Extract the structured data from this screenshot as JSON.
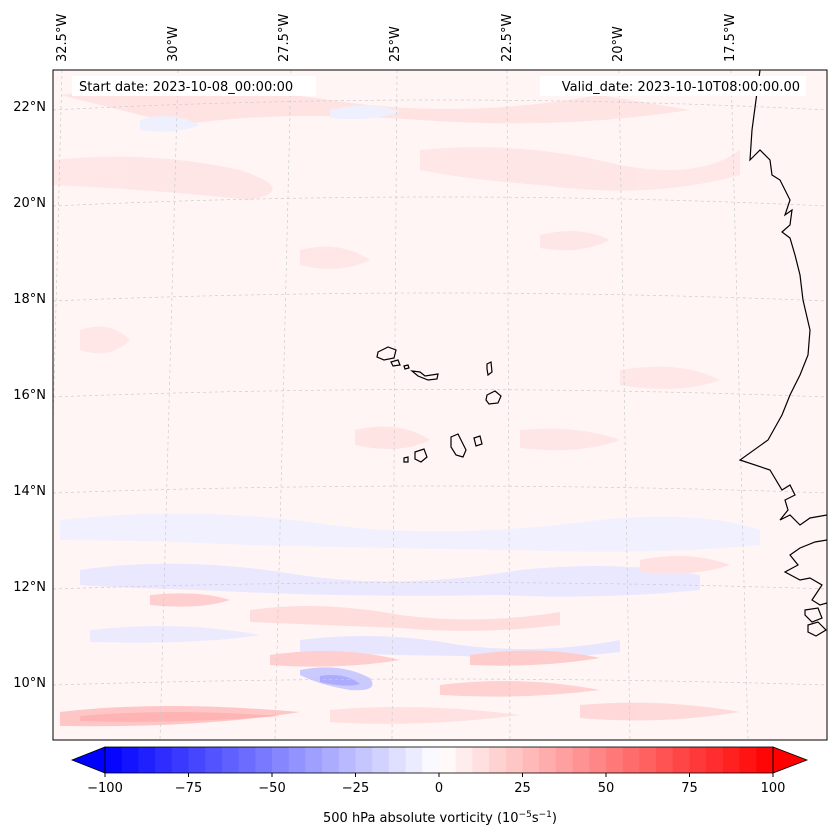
{
  "annotations": {
    "start_date": "Start date: 2023-10-08_00:00:00",
    "valid_date": "Valid_date: 2023-10-10T08:00:00.00"
  },
  "longitude_labels": [
    "32.5°W",
    "30°W",
    "27.5°W",
    "25°W",
    "22.5°W",
    "20°W",
    "17.5°W"
  ],
  "latitude_labels": [
    "22°N",
    "20°N",
    "18°N",
    "16°N",
    "14°N",
    "12°N",
    "10°N"
  ],
  "colorbar": {
    "label_main": "500 hPa absolute vorticity (10",
    "label_exp1": "−5",
    "label_mid": "s",
    "label_exp2": "−1",
    "label_end": ")",
    "range": [
      -100,
      100
    ],
    "ticks": [
      "−100",
      "−75",
      "−50",
      "−25",
      "0",
      "25",
      "50",
      "75",
      "100"
    ],
    "color_min": "#0000ff",
    "color_mid": "#ffffff",
    "color_max": "#ff0000",
    "extend": "both"
  },
  "map": {
    "field": "500 hPa absolute vorticity",
    "background_color": "#fff5f5",
    "positive_color": "#ffd6d6",
    "negative_color": "#dcdcff",
    "coastline_color": "#000000",
    "gridline_color": "#cccccc"
  }
}
